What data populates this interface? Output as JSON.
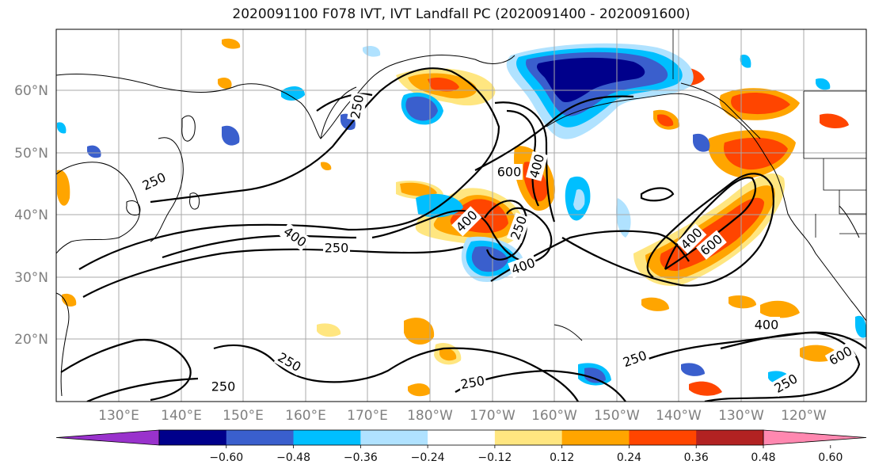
{
  "title": "2020091100 F078 IVT, IVT Landfall PC (2020091400 - 2020091600)",
  "map": {
    "lon_labels": [
      "130°E",
      "140°E",
      "150°E",
      "160°E",
      "170°E",
      "180°W",
      "170°W",
      "160°W",
      "150°W",
      "140°W",
      "130°W",
      "120°W"
    ],
    "lat_labels": [
      "60°N",
      "50°N",
      "40°N",
      "30°N",
      "20°N"
    ],
    "contour_levels": [
      250,
      400,
      600
    ],
    "contour_labels": [
      {
        "text": "250",
        "rot": -25
      },
      {
        "text": "250",
        "rot": 0
      },
      {
        "text": "250",
        "rot": 30
      },
      {
        "text": "250",
        "rot": 0
      },
      {
        "text": "250",
        "rot": -10
      },
      {
        "text": "250",
        "rot": -20
      },
      {
        "text": "250",
        "rot": -30
      },
      {
        "text": "250",
        "rot": -80
      },
      {
        "text": "250",
        "rot": -70
      },
      {
        "text": "400",
        "rot": 35
      },
      {
        "text": "400",
        "rot": -45
      },
      {
        "text": "400",
        "rot": -20
      },
      {
        "text": "400",
        "rot": -75
      },
      {
        "text": "400",
        "rot": -45
      },
      {
        "text": "400",
        "rot": 0
      },
      {
        "text": "600",
        "rot": 0
      },
      {
        "text": "600",
        "rot": -40
      },
      {
        "text": "600",
        "rot": -30
      }
    ]
  },
  "colorbar": {
    "ticks": [
      "−0.60",
      "−0.48",
      "−0.36",
      "−0.24",
      "−0.12",
      "0.12",
      "0.24",
      "0.36",
      "0.48",
      "0.60"
    ],
    "colors": [
      "#9932cc",
      "#00008b",
      "#3a5fcd",
      "#00bfff",
      "#b0e2ff",
      "#ffffff",
      "#ffe680",
      "#ffa500",
      "#ff4500",
      "#b22222",
      "#ff88b0"
    ]
  }
}
